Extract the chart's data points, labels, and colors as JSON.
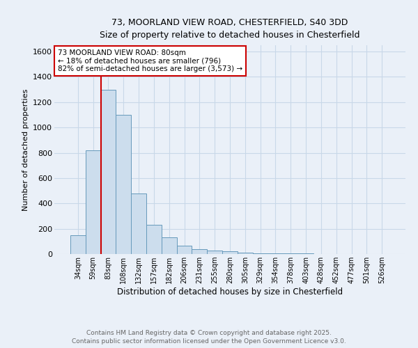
{
  "title_line1": "73, MOORLAND VIEW ROAD, CHESTERFIELD, S40 3DD",
  "title_line2": "Size of property relative to detached houses in Chesterfield",
  "xlabel": "Distribution of detached houses by size in Chesterfield",
  "ylabel": "Number of detached properties",
  "categories": [
    "34sqm",
    "59sqm",
    "83sqm",
    "108sqm",
    "132sqm",
    "157sqm",
    "182sqm",
    "206sqm",
    "231sqm",
    "255sqm",
    "280sqm",
    "305sqm",
    "329sqm",
    "354sqm",
    "378sqm",
    "403sqm",
    "428sqm",
    "452sqm",
    "477sqm",
    "501sqm",
    "526sqm"
  ],
  "values": [
    150,
    820,
    1300,
    1100,
    480,
    230,
    130,
    65,
    40,
    25,
    20,
    12,
    8,
    5,
    4,
    3,
    2,
    2,
    1,
    1,
    0
  ],
  "bar_color": "#ccdded",
  "bar_edge_color": "#6699bb",
  "red_line_index": 2,
  "annotation_text": "73 MOORLAND VIEW ROAD: 80sqm\n← 18% of detached houses are smaller (796)\n82% of semi-detached houses are larger (3,573) →",
  "annotation_box_color": "white",
  "annotation_box_edge": "#cc0000",
  "ylim": [
    0,
    1650
  ],
  "yticks": [
    0,
    200,
    400,
    600,
    800,
    1000,
    1200,
    1400,
    1600
  ],
  "grid_color": "#c8d8e8",
  "background_color": "#eaf0f8",
  "footer_line1": "Contains HM Land Registry data © Crown copyright and database right 2025.",
  "footer_line2": "Contains public sector information licensed under the Open Government Licence v3.0."
}
